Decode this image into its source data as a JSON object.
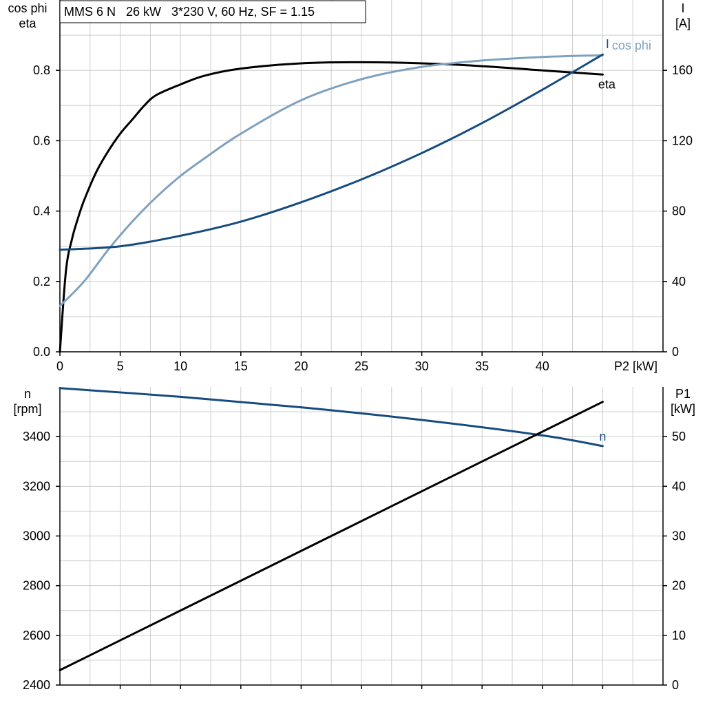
{
  "header": {
    "title": "MMS 6 N   26 kW   3*230 V, 60 Hz, SF = 1.15"
  },
  "colors": {
    "eta": "#000000",
    "cosphi": "#7fa1bf",
    "current": "#154b7f",
    "speed": "#154b7f",
    "p1": "#000000",
    "grid": "#cccccc",
    "axis": "#000000"
  },
  "chart_data": [
    {
      "type": "line",
      "name": "top",
      "xlabel": "P2 [kW]",
      "ylabel_left": [
        "cos phi",
        "eta"
      ],
      "ylabel_right": [
        "I",
        "[A]"
      ],
      "xlim": [
        0,
        50
      ],
      "ylim_left": [
        0,
        1.0
      ],
      "ylim_right": [
        0,
        200
      ],
      "x_ticks": [
        0,
        5,
        10,
        15,
        20,
        25,
        30,
        35,
        40
      ],
      "x_tick_labels": [
        "0",
        "5",
        "10",
        "15",
        "20",
        "25",
        "30",
        "35",
        "40"
      ],
      "y_left_ticks": [
        0.0,
        0.2,
        0.4,
        0.6,
        0.8
      ],
      "y_left_tick_labels": [
        "0.0",
        "0.2",
        "0.4",
        "0.6",
        "0.8"
      ],
      "y_right_ticks": [
        0,
        40,
        80,
        120,
        160
      ],
      "y_right_tick_labels": [
        "0",
        "40",
        "80",
        "120",
        "160"
      ],
      "grid": true,
      "series": [
        {
          "name": "eta",
          "axis": "left",
          "color": "#000000",
          "x": [
            0,
            0.5,
            1,
            1.5,
            2,
            3,
            4,
            5,
            6,
            7,
            8,
            10,
            12,
            15,
            20,
            25,
            30,
            35,
            40,
            45
          ],
          "y": [
            0.0,
            0.23,
            0.32,
            0.38,
            0.43,
            0.51,
            0.57,
            0.62,
            0.66,
            0.7,
            0.73,
            0.76,
            0.785,
            0.805,
            0.82,
            0.823,
            0.82,
            0.812,
            0.8,
            0.788
          ]
        },
        {
          "name": "cos phi",
          "axis": "left",
          "color": "#7fa1bf",
          "x": [
            0,
            2,
            4,
            6,
            8,
            10,
            12,
            15,
            20,
            25,
            30,
            35,
            40,
            45
          ],
          "y": [
            0.13,
            0.2,
            0.29,
            0.37,
            0.44,
            0.5,
            0.55,
            0.62,
            0.715,
            0.775,
            0.81,
            0.828,
            0.838,
            0.843
          ]
        },
        {
          "name": "I",
          "axis": "right",
          "color": "#154b7f",
          "x": [
            0,
            5,
            10,
            15,
            20,
            25,
            30,
            35,
            40,
            45
          ],
          "y": [
            58,
            60,
            66,
            74,
            85,
            98,
            113,
            130,
            149,
            169
          ]
        }
      ]
    },
    {
      "type": "line",
      "name": "bottom",
      "ylabel_left": [
        "n",
        "[rpm]"
      ],
      "ylabel_right": [
        "P1",
        "[kW]"
      ],
      "xlim": [
        0,
        50
      ],
      "ylim_left": [
        2400,
        3600
      ],
      "ylim_right": [
        0,
        60
      ],
      "y_left_ticks": [
        2400,
        2600,
        2800,
        3000,
        3200,
        3400
      ],
      "y_left_tick_labels": [
        "2400",
        "2600",
        "2800",
        "3000",
        "3200",
        "3400"
      ],
      "y_right_ticks": [
        0,
        10,
        20,
        30,
        40,
        50
      ],
      "y_right_tick_labels": [
        "0",
        "10",
        "20",
        "30",
        "40",
        "50"
      ],
      "grid": true,
      "series": [
        {
          "name": "n",
          "axis": "left",
          "color": "#154b7f",
          "x": [
            0,
            10,
            20,
            30,
            40,
            45
          ],
          "y": [
            3595,
            3560,
            3518,
            3467,
            3405,
            3362
          ]
        },
        {
          "name": "P1",
          "axis": "right",
          "color": "#000000",
          "x": [
            0,
            45
          ],
          "y": [
            3,
            57
          ]
        }
      ]
    }
  ]
}
